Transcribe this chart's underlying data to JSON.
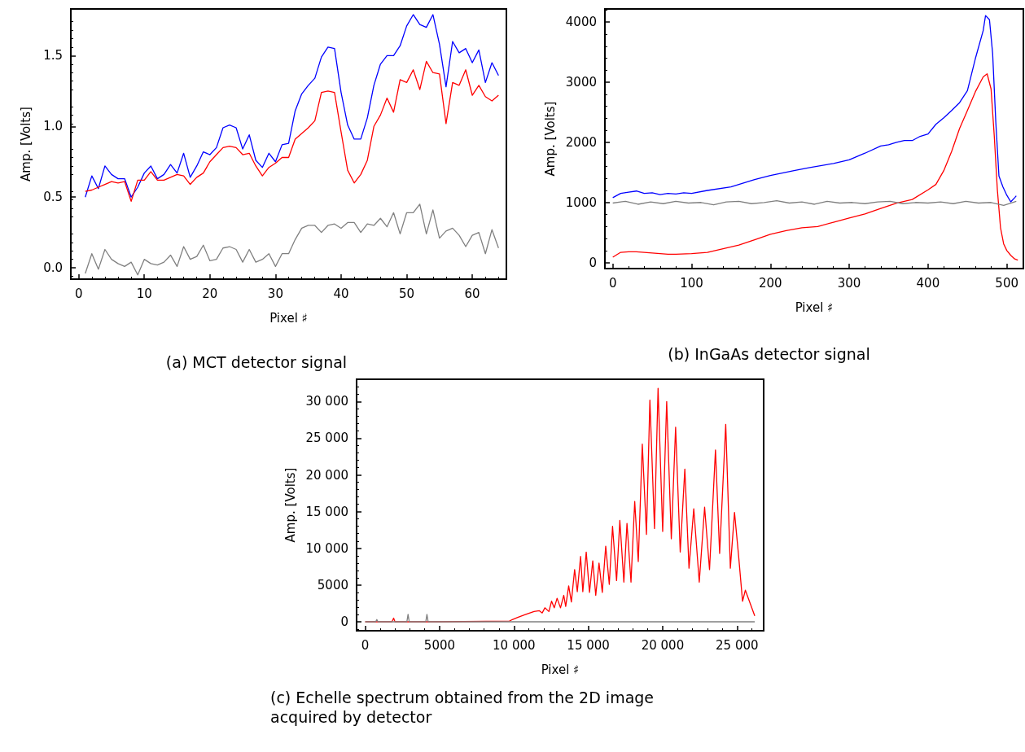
{
  "chart_data": [
    {
      "type": "line",
      "title": "(a) MCT detector signal",
      "xlabel": "Pixel ♯",
      "ylabel": "Amp. [Volts]",
      "x": [
        1,
        2,
        3,
        4,
        5,
        6,
        7,
        8,
        9,
        10,
        11,
        12,
        13,
        14,
        15,
        16,
        17,
        18,
        19,
        20,
        21,
        22,
        23,
        24,
        25,
        26,
        27,
        28,
        29,
        30,
        31,
        32,
        33,
        34,
        35,
        36,
        37,
        38,
        39,
        40,
        41,
        42,
        43,
        44,
        45,
        46,
        47,
        48,
        49,
        50,
        51,
        52,
        53,
        54,
        55,
        56,
        57,
        58,
        59,
        60,
        61,
        62,
        63,
        64
      ],
      "series": [
        {
          "color": "#0000ff",
          "values": [
            0.5,
            0.65,
            0.56,
            0.72,
            0.66,
            0.63,
            0.63,
            0.5,
            0.57,
            0.67,
            0.72,
            0.63,
            0.66,
            0.73,
            0.67,
            0.81,
            0.64,
            0.72,
            0.82,
            0.8,
            0.85,
            0.99,
            1.01,
            0.99,
            0.84,
            0.94,
            0.76,
            0.71,
            0.81,
            0.75,
            0.87,
            0.88,
            1.11,
            1.23,
            1.29,
            1.34,
            1.49,
            1.56,
            1.55,
            1.24,
            1.01,
            0.91,
            0.91,
            1.06,
            1.29,
            1.44,
            1.5,
            1.5,
            1.57,
            1.71,
            1.79,
            1.72,
            1.7,
            1.79,
            1.58,
            1.28,
            1.6,
            1.52,
            1.55,
            1.45,
            1.54,
            1.31,
            1.45,
            1.36
          ]
        },
        {
          "color": "#ff0000",
          "values": [
            0.54,
            0.55,
            0.57,
            0.59,
            0.61,
            0.6,
            0.61,
            0.47,
            0.62,
            0.62,
            0.68,
            0.62,
            0.62,
            0.64,
            0.66,
            0.65,
            0.59,
            0.64,
            0.67,
            0.75,
            0.8,
            0.85,
            0.86,
            0.85,
            0.8,
            0.81,
            0.72,
            0.65,
            0.71,
            0.74,
            0.78,
            0.78,
            0.91,
            0.95,
            0.99,
            1.04,
            1.24,
            1.25,
            1.24,
            0.96,
            0.69,
            0.6,
            0.66,
            0.76,
            1.0,
            1.08,
            1.2,
            1.1,
            1.33,
            1.31,
            1.4,
            1.26,
            1.46,
            1.38,
            1.37,
            1.02,
            1.31,
            1.29,
            1.4,
            1.22,
            1.29,
            1.21,
            1.18,
            1.22
          ]
        },
        {
          "color": "#808080",
          "values": [
            -0.04,
            0.1,
            -0.01,
            0.13,
            0.06,
            0.03,
            0.01,
            0.04,
            -0.05,
            0.06,
            0.03,
            0.02,
            0.04,
            0.09,
            0.01,
            0.15,
            0.06,
            0.08,
            0.16,
            0.05,
            0.06,
            0.14,
            0.15,
            0.13,
            0.04,
            0.13,
            0.04,
            0.06,
            0.1,
            0.01,
            0.1,
            0.1,
            0.2,
            0.28,
            0.3,
            0.3,
            0.25,
            0.3,
            0.31,
            0.28,
            0.32,
            0.32,
            0.25,
            0.31,
            0.3,
            0.35,
            0.29,
            0.39,
            0.24,
            0.39,
            0.39,
            0.45,
            0.24,
            0.41,
            0.21,
            0.26,
            0.28,
            0.23,
            0.15,
            0.23,
            0.25,
            0.1,
            0.27,
            0.14
          ]
        }
      ],
      "xlim": [
        -1.2,
        65.2
      ],
      "xticks": [
        0,
        10,
        20,
        30,
        40,
        50,
        60
      ],
      "ylim": [
        -0.08,
        1.83
      ],
      "yticks": [
        {
          "value": 0,
          "label": "0.0"
        },
        {
          "value": 0.5,
          "label": "0.5"
        },
        {
          "value": 1,
          "label": "1.0"
        },
        {
          "value": 1.5,
          "label": "1.5"
        }
      ],
      "grid": false,
      "marker": "none",
      "line_style": "solid"
    },
    {
      "type": "line",
      "title": "(b) InGaAs detector signal",
      "xlabel": "Pixel ♯",
      "ylabel": "Amp. [Volts]",
      "series": [
        {
          "color": "#0000ff",
          "x": [
            0,
            10,
            20,
            30,
            40,
            50,
            60,
            70,
            80,
            90,
            100,
            120,
            150,
            180,
            200,
            230,
            250,
            280,
            300,
            320,
            340,
            350,
            360,
            370,
            380,
            390,
            400,
            410,
            420,
            430,
            440,
            450,
            460,
            470,
            473,
            478,
            482,
            486,
            490,
            495,
            500,
            505,
            510,
            512
          ],
          "values": [
            1080,
            1150,
            1170,
            1190,
            1150,
            1160,
            1130,
            1150,
            1140,
            1160,
            1150,
            1200,
            1260,
            1380,
            1450,
            1530,
            1580,
            1650,
            1710,
            1820,
            1940,
            1960,
            2000,
            2030,
            2030,
            2100,
            2140,
            2300,
            2410,
            2530,
            2660,
            2860,
            3390,
            3860,
            4110,
            4040,
            3480,
            2340,
            1440,
            1260,
            1120,
            1010,
            1080,
            1110
          ]
        },
        {
          "color": "#ff0000",
          "x": [
            0,
            10,
            20,
            30,
            50,
            70,
            80,
            100,
            120,
            140,
            160,
            180,
            200,
            220,
            240,
            260,
            280,
            300,
            320,
            340,
            360,
            380,
            400,
            410,
            420,
            430,
            440,
            450,
            460,
            470,
            475,
            480,
            484,
            488,
            492,
            496,
            500,
            505,
            510,
            514
          ],
          "values": [
            90,
            170,
            180,
            180,
            160,
            140,
            140,
            150,
            170,
            230,
            290,
            380,
            470,
            530,
            580,
            600,
            670,
            740,
            810,
            900,
            990,
            1050,
            1210,
            1300,
            1530,
            1850,
            2230,
            2530,
            2840,
            3090,
            3140,
            2890,
            2120,
            1210,
            580,
            310,
            200,
            120,
            60,
            40
          ]
        },
        {
          "color": "#808080",
          "x": [
            0,
            16,
            32,
            48,
            64,
            80,
            96,
            112,
            128,
            144,
            160,
            176,
            192,
            208,
            224,
            240,
            256,
            272,
            288,
            304,
            320,
            336,
            352,
            368,
            384,
            400,
            416,
            432,
            448,
            464,
            480,
            496,
            512
          ],
          "values": [
            990,
            1020,
            970,
            1010,
            980,
            1020,
            990,
            1000,
            960,
            1010,
            1020,
            980,
            1000,
            1030,
            990,
            1010,
            970,
            1020,
            990,
            1000,
            980,
            1010,
            1020,
            980,
            1000,
            990,
            1010,
            980,
            1020,
            990,
            1000,
            950,
            1020
          ]
        }
      ],
      "xlim": [
        -10,
        521
      ],
      "xticks": [
        0,
        100,
        200,
        300,
        400,
        500
      ],
      "ylim": [
        -100,
        4220
      ],
      "yticks": [
        0,
        1000,
        2000,
        3000,
        4000
      ],
      "grid": false,
      "marker": "none",
      "line_style": "solid"
    },
    {
      "type": "line",
      "title": "(c) Echelle spectrum obtained from the 2D image acquired by detector",
      "xlabel": "Pixel ♯",
      "ylabel": "Amp. [Volts]",
      "series": [
        {
          "color": "#ff0000",
          "x": [
            0,
            1800,
            1910,
            2000,
            5000,
            9700,
            9890,
            10250,
            10800,
            11350,
            11710,
            11900,
            12080,
            12350,
            12530,
            12710,
            12900,
            13130,
            13350,
            13480,
            13680,
            13860,
            14080,
            14260,
            14480,
            14630,
            14860,
            15080,
            15300,
            15500,
            15720,
            15940,
            16170,
            16410,
            16630,
            16900,
            17120,
            17390,
            17600,
            17870,
            18120,
            18360,
            18630,
            18910,
            19140,
            19450,
            19690,
            20000,
            20270,
            20580,
            20870,
            21180,
            21490,
            21770,
            22090,
            22460,
            22820,
            23150,
            23550,
            23830,
            24240,
            24550,
            24830,
            25100,
            25370,
            25560,
            25830,
            26190
          ],
          "values": [
            0,
            0,
            500,
            0,
            0,
            100,
            300,
            600,
            1000,
            1400,
            1500,
            1200,
            1900,
            1400,
            2800,
            1900,
            3200,
            1900,
            3600,
            2100,
            4900,
            2700,
            7100,
            4100,
            8900,
            4100,
            9500,
            4000,
            8300,
            3600,
            8000,
            4000,
            10300,
            5100,
            13000,
            5600,
            13800,
            5400,
            13400,
            5400,
            16400,
            8200,
            24200,
            11900,
            30200,
            12700,
            31800,
            12300,
            30000,
            11300,
            26500,
            9500,
            20800,
            7300,
            15400,
            5400,
            15600,
            7100,
            23400,
            9300,
            26900,
            7300,
            14900,
            9100,
            2800,
            4300,
            2800,
            800
          ]
        },
        {
          "color": "#808080",
          "x": [
            0,
            700,
            780,
            860,
            2800,
            2880,
            2960,
            4070,
            4150,
            4230,
            10000,
            20000,
            26190
          ],
          "values": [
            0,
            0,
            300,
            0,
            0,
            1000,
            0,
            0,
            1000,
            0,
            0,
            0,
            0
          ]
        }
      ],
      "xlim": [
        -580,
        26790
      ],
      "xticks": [
        0,
        5000,
        {
          "value": 10000,
          "label": "10 000"
        },
        {
          "value": 15000,
          "label": "15 000"
        },
        {
          "value": 20000,
          "label": "20 000"
        },
        {
          "value": 25000,
          "label": "25 000"
        }
      ],
      "ylim": [
        -1220,
        33030
      ],
      "yticks": [
        0,
        5000,
        {
          "value": 10000,
          "label": "10 000"
        },
        {
          "value": 15000,
          "label": "15 000"
        },
        {
          "value": 20000,
          "label": "20 000"
        },
        {
          "value": 25000,
          "label": "25 000"
        },
        {
          "value": 30000,
          "label": "30 000"
        }
      ],
      "grid": false,
      "marker": "none",
      "line_style": "solid"
    }
  ]
}
